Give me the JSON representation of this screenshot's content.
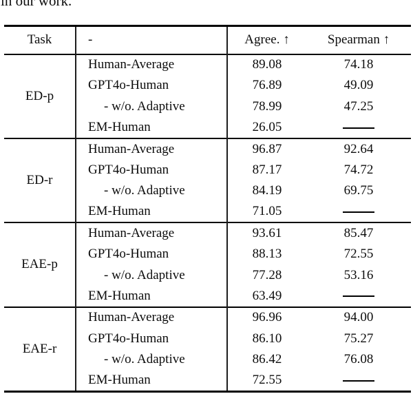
{
  "page": {
    "top_text": "in our work."
  },
  "table": {
    "headers": {
      "task": "Task",
      "method": "-",
      "agree": "Agree. ↑",
      "spearman": "Spearman ↑"
    },
    "missing_marker": "——",
    "groups": [
      {
        "task": "ED-p",
        "rows": [
          {
            "method": "Human-Average",
            "agree": "89.08",
            "spearman": "74.18",
            "indent": false
          },
          {
            "method": "GPT4o-Human",
            "agree": "76.89",
            "spearman": "49.09",
            "indent": false
          },
          {
            "method": "- w/o. Adaptive",
            "agree": "78.99",
            "spearman": "47.25",
            "indent": true
          },
          {
            "method": "EM-Human",
            "agree": "26.05",
            "spearman": null,
            "indent": false
          }
        ]
      },
      {
        "task": "ED-r",
        "rows": [
          {
            "method": "Human-Average",
            "agree": "96.87",
            "spearman": "92.64",
            "indent": false
          },
          {
            "method": "GPT4o-Human",
            "agree": "87.17",
            "spearman": "74.72",
            "indent": false
          },
          {
            "method": "- w/o. Adaptive",
            "agree": "84.19",
            "spearman": "69.75",
            "indent": true
          },
          {
            "method": "EM-Human",
            "agree": "71.05",
            "spearman": null,
            "indent": false
          }
        ]
      },
      {
        "task": "EAE-p",
        "rows": [
          {
            "method": "Human-Average",
            "agree": "93.61",
            "spearman": "85.47",
            "indent": false
          },
          {
            "method": "GPT4o-Human",
            "agree": "88.13",
            "spearman": "72.55",
            "indent": false
          },
          {
            "method": "- w/o. Adaptive",
            "agree": "77.28",
            "spearman": "53.16",
            "indent": true
          },
          {
            "method": "EM-Human",
            "agree": "63.49",
            "spearman": null,
            "indent": false
          }
        ]
      },
      {
        "task": "EAE-r",
        "rows": [
          {
            "method": "Human-Average",
            "agree": "96.96",
            "spearman": "94.00",
            "indent": false
          },
          {
            "method": "GPT4o-Human",
            "agree": "86.10",
            "spearman": "75.27",
            "indent": false
          },
          {
            "method": "- w/o. Adaptive",
            "agree": "86.42",
            "spearman": "76.08",
            "indent": true
          },
          {
            "method": "EM-Human",
            "agree": "72.55",
            "spearman": null,
            "indent": false
          }
        ]
      }
    ]
  }
}
